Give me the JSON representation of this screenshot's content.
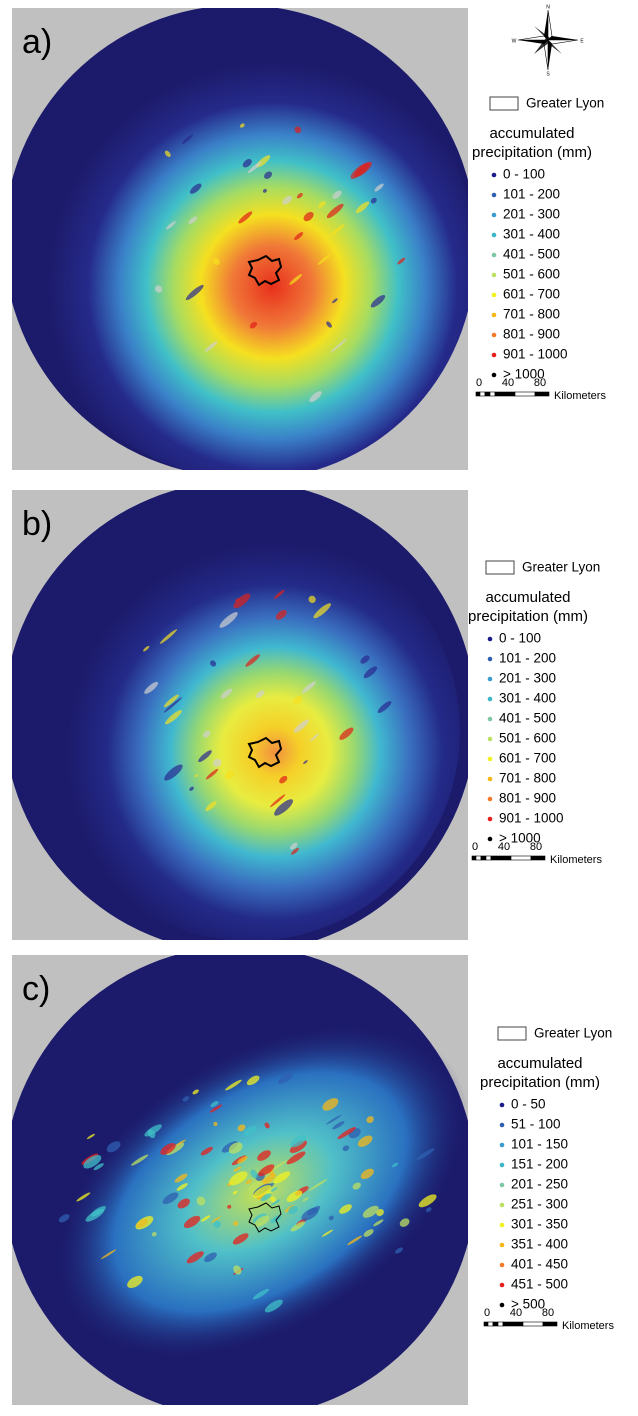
{
  "compass": {
    "north": "N",
    "east": "E",
    "south": "S",
    "west": "W"
  },
  "panels": [
    {
      "label": "a)",
      "boundary_label": "Greater Lyon",
      "legend_title": [
        "accumulated",
        "precipitation (mm)"
      ],
      "classes": [
        {
          "label": "0 - 100",
          "color": "#1a1a8c"
        },
        {
          "label": "101 - 200",
          "color": "#2f5fb0"
        },
        {
          "label": "201 - 300",
          "color": "#3a9bd0"
        },
        {
          "label": "301 - 400",
          "color": "#3ab8c8"
        },
        {
          "label": "401 - 500",
          "color": "#7ec8a8"
        },
        {
          "label": "501 - 600",
          "color": "#bde060"
        },
        {
          "label": "601 - 700",
          "color": "#f2f020"
        },
        {
          "label": "701 - 800",
          "color": "#f6b818"
        },
        {
          "label": "801 - 900",
          "color": "#f27a28"
        },
        {
          "label": "901 - 1000",
          "color": "#e8201c"
        },
        {
          "label": "> 1000",
          "color": "#000000"
        }
      ],
      "scale": {
        "ticks": [
          "0",
          "40",
          "80"
        ],
        "unit": "Kilometers"
      }
    },
    {
      "label": "b)",
      "boundary_label": "Greater Lyon",
      "legend_title": [
        "accumulated",
        "precipitation (mm)"
      ],
      "classes": [
        {
          "label": "0 - 100",
          "color": "#1a1a8c"
        },
        {
          "label": "101 - 200",
          "color": "#2f5fb0"
        },
        {
          "label": "201 - 300",
          "color": "#3a9bd0"
        },
        {
          "label": "301 - 400",
          "color": "#3ab8c8"
        },
        {
          "label": "401 - 500",
          "color": "#7ec8a8"
        },
        {
          "label": "501 - 600",
          "color": "#bde060"
        },
        {
          "label": "601 - 700",
          "color": "#f2f020"
        },
        {
          "label": "701 - 800",
          "color": "#f6b818"
        },
        {
          "label": "801 - 900",
          "color": "#f27a28"
        },
        {
          "label": "901 - 1000",
          "color": "#e8201c"
        },
        {
          "label": "> 1000",
          "color": "#000000"
        }
      ],
      "scale": {
        "ticks": [
          "0",
          "40",
          "80"
        ],
        "unit": "Kilometers"
      }
    },
    {
      "label": "c)",
      "boundary_label": "Greater Lyon",
      "legend_title": [
        "accumulated",
        "precipitation (mm)"
      ],
      "classes": [
        {
          "label": "0 - 50",
          "color": "#1a1a8c"
        },
        {
          "label": "51 - 100",
          "color": "#2f5fb0"
        },
        {
          "label": "101 - 150",
          "color": "#3a9bd0"
        },
        {
          "label": "151 - 200",
          "color": "#3ab8c8"
        },
        {
          "label": "201 - 250",
          "color": "#7ec8a8"
        },
        {
          "label": "251 - 300",
          "color": "#bde060"
        },
        {
          "label": "301 - 350",
          "color": "#f2f020"
        },
        {
          "label": "351 - 400",
          "color": "#f6b818"
        },
        {
          "label": "401 - 450",
          "color": "#f27a28"
        },
        {
          "label": "451 - 500",
          "color": "#e8201c"
        },
        {
          "label": "> 500",
          "color": "#000000"
        }
      ],
      "scale": {
        "ticks": [
          "0",
          "40",
          "80"
        ],
        "unit": "Kilometers"
      }
    }
  ]
}
